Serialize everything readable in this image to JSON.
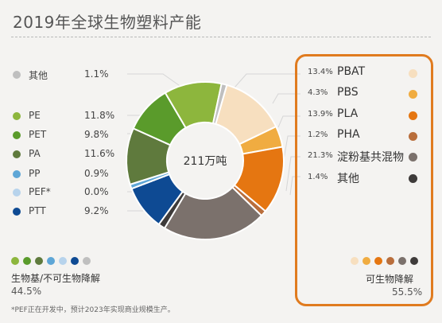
{
  "title": "2019年全球生物塑料产能",
  "chart_data": {
    "type": "pie",
    "center_label": "211万吨",
    "slices": [
      {
        "name": "PBAT",
        "value": 13.4,
        "label": "13.4%",
        "color": "#f7dfbf",
        "group": "biodegradable"
      },
      {
        "name": "PBS",
        "value": 4.3,
        "label": "4.3%",
        "color": "#f0ac41",
        "group": "biodegradable"
      },
      {
        "name": "PLA",
        "value": 13.9,
        "label": "13.9%",
        "color": "#e57611",
        "group": "biodegradable"
      },
      {
        "name": "PHA",
        "value": 1.2,
        "label": "1.2%",
        "color": "#b96e3c",
        "group": "biodegradable"
      },
      {
        "name": "淀粉基共混物",
        "value": 21.3,
        "label": "21.3%",
        "color": "#7b716c",
        "group": "biodegradable"
      },
      {
        "name": "其他",
        "value": 1.4,
        "label": "1.4%",
        "color": "#3e3b3a",
        "group": "biodegradable"
      },
      {
        "name": "PTT",
        "value": 9.2,
        "label": "9.2%",
        "color": "#0e4a93",
        "group": "non-biodegradable"
      },
      {
        "name": "PEF*",
        "value": 0.0,
        "label": "0.0%",
        "color": "#b7d3ec",
        "group": "non-biodegradable"
      },
      {
        "name": "PP",
        "value": 0.9,
        "label": "0.9%",
        "color": "#5ea6d6",
        "group": "non-biodegradable"
      },
      {
        "name": "PA",
        "value": 11.6,
        "label": "11.6%",
        "color": "#5f7a3d",
        "group": "non-biodegradable"
      },
      {
        "name": "PET",
        "value": 9.8,
        "label": "9.8%",
        "color": "#5a9b2b",
        "group": "non-biodegradable"
      },
      {
        "name": "PE",
        "value": 11.8,
        "label": "11.8%",
        "color": "#8db63d",
        "group": "non-biodegradable"
      },
      {
        "name": "其他",
        "value": 1.1,
        "label": "1.1%",
        "color": "#bfbfbf",
        "group": "non-biodegradable"
      }
    ],
    "legend_left": [
      {
        "name": "其他",
        "pct": "1.1%",
        "color": "#bfbfbf"
      },
      {
        "name": "PE",
        "pct": "11.8%",
        "color": "#8db63d"
      },
      {
        "name": "PET",
        "pct": "9.8%",
        "color": "#5a9b2b"
      },
      {
        "name": "PA",
        "pct": "11.6%",
        "color": "#5f7a3d"
      },
      {
        "name": "PP",
        "pct": "0.9%",
        "color": "#5ea6d6"
      },
      {
        "name": "PEF*",
        "pct": "0.0%",
        "color": "#b7d3ec"
      },
      {
        "name": "PTT",
        "pct": "9.2%",
        "color": "#0e4a93"
      }
    ],
    "legend_right": [
      {
        "name": "PBAT",
        "pct": "13.4%",
        "color": "#f7dfbf"
      },
      {
        "name": "PBS",
        "pct": "4.3%",
        "color": "#f0ac41"
      },
      {
        "name": "PLA",
        "pct": "13.9%",
        "color": "#e57611"
      },
      {
        "name": "PHA",
        "pct": "1.2%",
        "color": "#b96e3c"
      },
      {
        "name": "淀粉基共混物",
        "pct": "21.3%",
        "color": "#7b716c"
      },
      {
        "name": "其他",
        "pct": "1.4%",
        "color": "#3e3b3a"
      }
    ],
    "groups": {
      "left": {
        "label": "生物基/不可生物降解",
        "pct": "44.5%",
        "swatches": [
          "#8db63d",
          "#5a9b2b",
          "#5f7a3d",
          "#5ea6d6",
          "#b7d3ec",
          "#0e4a93",
          "#bfbfbf"
        ]
      },
      "right": {
        "label": "可生物降解",
        "pct": "55.5%",
        "swatches": [
          "#f7dfbf",
          "#f0ac41",
          "#e57611",
          "#b96e3c",
          "#7b716c",
          "#3e3b3a"
        ]
      }
    }
  },
  "footnote": "*PEF正在开发中，预计2023年实现商业规模生产。"
}
